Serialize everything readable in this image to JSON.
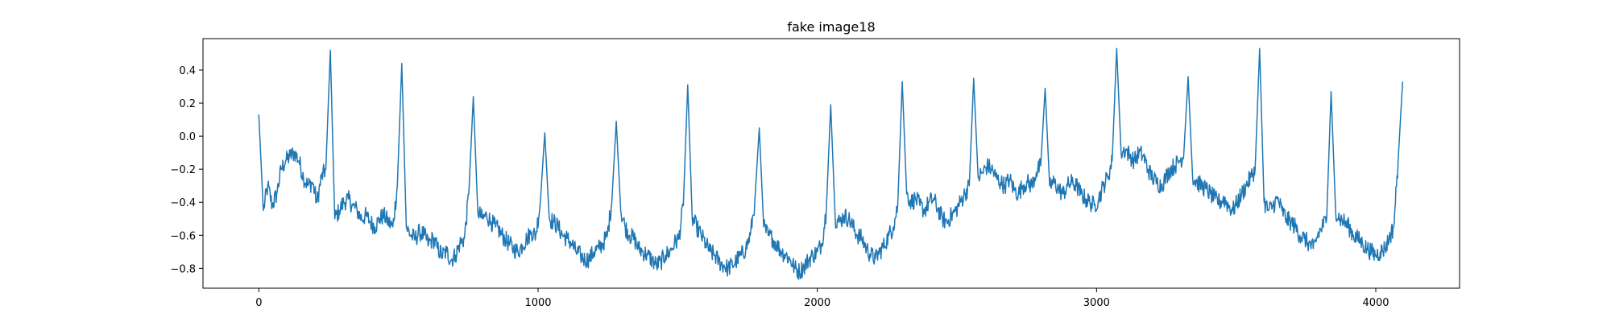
{
  "chart_data": {
    "type": "line",
    "title": "fake image18",
    "xlabel": "",
    "ylabel": "",
    "xlim": [
      -200,
      4300
    ],
    "ylim": [
      -0.92,
      0.59
    ],
    "x_ticks": [
      0,
      1000,
      2000,
      3000,
      4000
    ],
    "x_tick_labels": [
      "0",
      "1000",
      "2000",
      "3000",
      "4000"
    ],
    "y_ticks": [
      0.4,
      0.2,
      0.0,
      -0.2,
      -0.4,
      -0.6,
      -0.8
    ],
    "y_tick_labels": [
      "0.4",
      "0.2",
      "0.0",
      "−0.2",
      "−0.4",
      "−0.6",
      "−0.8"
    ],
    "grid": false,
    "legend": "none",
    "series": [
      {
        "color": "#1f77b4",
        "sample_step": 16,
        "values": [
          0.13,
          -0.45,
          -0.3,
          -0.42,
          -0.35,
          -0.2,
          -0.15,
          -0.12,
          -0.1,
          -0.15,
          -0.25,
          -0.3,
          -0.28,
          -0.4,
          -0.25,
          -0.2,
          0.52,
          -0.5,
          -0.45,
          -0.4,
          -0.38,
          -0.42,
          -0.45,
          -0.5,
          -0.48,
          -0.52,
          -0.55,
          -0.5,
          -0.48,
          -0.52,
          -0.55,
          -0.3,
          0.44,
          -0.55,
          -0.6,
          -0.62,
          -0.58,
          -0.6,
          -0.65,
          -0.62,
          -0.68,
          -0.72,
          -0.7,
          -0.75,
          -0.72,
          -0.65,
          -0.62,
          -0.35,
          0.24,
          -0.45,
          -0.5,
          -0.48,
          -0.52,
          -0.55,
          -0.58,
          -0.62,
          -0.65,
          -0.68,
          -0.7,
          -0.66,
          -0.62,
          -0.58,
          -0.6,
          -0.4,
          0.02,
          -0.5,
          -0.52,
          -0.55,
          -0.6,
          -0.62,
          -0.65,
          -0.7,
          -0.72,
          -0.75,
          -0.74,
          -0.7,
          -0.68,
          -0.65,
          -0.6,
          -0.4,
          0.09,
          -0.45,
          -0.55,
          -0.6,
          -0.62,
          -0.68,
          -0.7,
          -0.72,
          -0.75,
          -0.78,
          -0.76,
          -0.72,
          -0.7,
          -0.65,
          -0.62,
          -0.42,
          0.31,
          -0.5,
          -0.55,
          -0.6,
          -0.65,
          -0.7,
          -0.72,
          -0.76,
          -0.78,
          -0.8,
          -0.78,
          -0.75,
          -0.72,
          -0.68,
          -0.6,
          -0.4,
          0.05,
          -0.55,
          -0.6,
          -0.62,
          -0.66,
          -0.7,
          -0.72,
          -0.75,
          -0.8,
          -0.82,
          -0.79,
          -0.75,
          -0.72,
          -0.7,
          -0.65,
          -0.45,
          0.19,
          -0.5,
          -0.52,
          -0.48,
          -0.5,
          -0.55,
          -0.6,
          -0.62,
          -0.68,
          -0.72,
          -0.74,
          -0.7,
          -0.66,
          -0.6,
          -0.55,
          -0.42,
          0.33,
          -0.35,
          -0.4,
          -0.38,
          -0.42,
          -0.45,
          -0.4,
          -0.38,
          -0.44,
          -0.5,
          -0.52,
          -0.48,
          -0.45,
          -0.4,
          -0.35,
          -0.3,
          0.35,
          -0.25,
          -0.22,
          -0.18,
          -0.2,
          -0.25,
          -0.28,
          -0.3,
          -0.26,
          -0.32,
          -0.35,
          -0.3,
          -0.28,
          -0.3,
          -0.22,
          -0.18,
          0.29,
          -0.3,
          -0.28,
          -0.32,
          -0.35,
          -0.3,
          -0.28,
          -0.3,
          -0.35,
          -0.38,
          -0.4,
          -0.42,
          -0.38,
          -0.3,
          -0.25,
          -0.15,
          0.53,
          -0.1,
          -0.08,
          -0.12,
          -0.15,
          -0.1,
          -0.12,
          -0.2,
          -0.25,
          -0.28,
          -0.3,
          -0.25,
          -0.2,
          -0.18,
          -0.15,
          -0.12,
          0.36,
          -0.25,
          -0.28,
          -0.3,
          -0.32,
          -0.35,
          -0.38,
          -0.4,
          -0.38,
          -0.42,
          -0.45,
          -0.4,
          -0.35,
          -0.3,
          -0.25,
          -0.2,
          0.53,
          -0.4,
          -0.45,
          -0.42,
          -0.38,
          -0.45,
          -0.5,
          -0.52,
          -0.55,
          -0.6,
          -0.62,
          -0.65,
          -0.68,
          -0.6,
          -0.55,
          -0.5,
          0.27,
          -0.45,
          -0.5,
          -0.52,
          -0.55,
          -0.6,
          -0.62,
          -0.65,
          -0.68,
          -0.7,
          -0.72,
          -0.7,
          -0.68,
          -0.62,
          -0.55,
          -0.15,
          0.33
        ]
      }
    ]
  }
}
